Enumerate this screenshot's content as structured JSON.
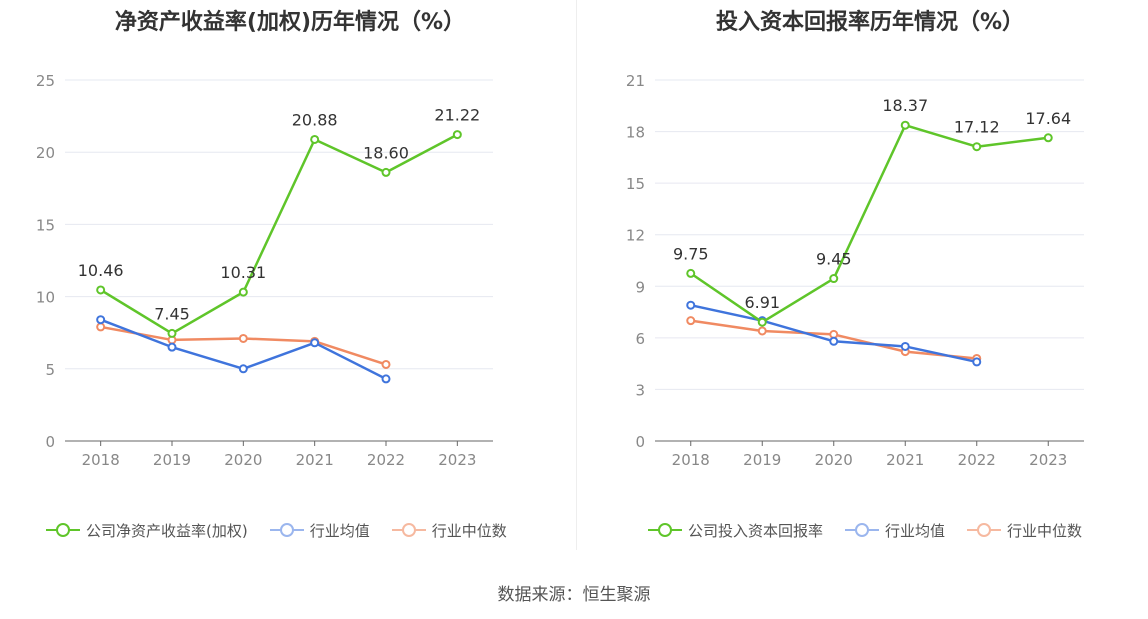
{
  "source": "数据来源：恒生聚源",
  "colors": {
    "company": "#5fc52a",
    "avg": "#3f74dc",
    "median": "#f08a62",
    "grid": "#e6e8f0",
    "axis": "#666666",
    "tick": "#888888"
  },
  "chart_data": [
    {
      "type": "line",
      "title": "净资产收益率(加权)历年情况（%）",
      "categories": [
        "2018",
        "2019",
        "2020",
        "2021",
        "2022",
        "2023"
      ],
      "ylim": [
        0,
        25
      ],
      "yticks": [
        0,
        5,
        10,
        15,
        20,
        25
      ],
      "series": [
        {
          "name": "公司净资产收益率(加权)",
          "key": "company",
          "values": [
            10.46,
            7.45,
            10.31,
            20.88,
            18.6,
            21.22
          ],
          "labels": [
            "10.46",
            "7.45",
            "10.31",
            "20.88",
            "18.60",
            "21.22"
          ]
        },
        {
          "name": "行业均值",
          "key": "avg",
          "values": [
            8.4,
            6.5,
            5.0,
            6.8,
            4.3,
            null
          ]
        },
        {
          "name": "行业中位数",
          "key": "median",
          "values": [
            7.9,
            7.0,
            7.1,
            6.9,
            5.3,
            null
          ]
        }
      ]
    },
    {
      "type": "line",
      "title": "投入资本回报率历年情况（%）",
      "categories": [
        "2018",
        "2019",
        "2020",
        "2021",
        "2022",
        "2023"
      ],
      "ylim": [
        0,
        21
      ],
      "yticks": [
        0,
        3,
        6,
        9,
        12,
        15,
        18,
        21
      ],
      "series": [
        {
          "name": "公司投入资本回报率",
          "key": "company",
          "values": [
            9.75,
            6.91,
            9.45,
            18.37,
            17.12,
            17.64
          ],
          "labels": [
            "9.75",
            "6.91",
            "9.45",
            "18.37",
            "17.12",
            "17.64"
          ]
        },
        {
          "name": "行业均值",
          "key": "avg",
          "values": [
            7.9,
            7.0,
            5.8,
            5.5,
            4.6,
            null
          ]
        },
        {
          "name": "行业中位数",
          "key": "median",
          "values": [
            7.0,
            6.4,
            6.2,
            5.2,
            4.8,
            null
          ]
        }
      ]
    }
  ]
}
